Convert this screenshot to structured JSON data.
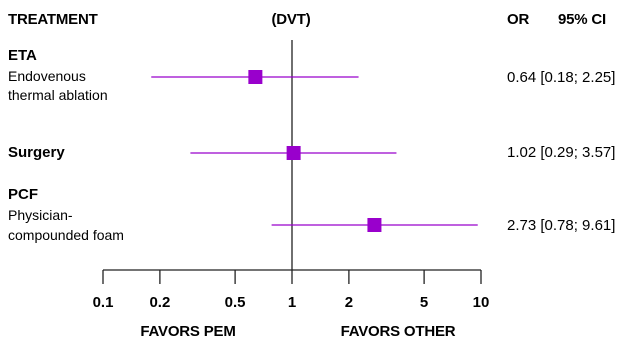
{
  "header": {
    "col1": "TREATMENT",
    "col2": "(DVT)",
    "col3": "OR",
    "col4": "95% CI"
  },
  "rows": [
    {
      "name": "ETA",
      "desc": [
        "Endovenous",
        "thermal ablation"
      ],
      "ci_text": "0.64 [0.18; 2.25]"
    },
    {
      "name": "Surgery",
      "desc": [],
      "ci_text": "1.02 [0.29; 3.57]"
    },
    {
      "name": "PCF",
      "desc": [
        "Physician-",
        "compounded foam"
      ],
      "ci_text": "2.73 [0.78; 9.61]"
    }
  ],
  "footer": {
    "left": "FAVORS PEM",
    "right": "FAVORS OTHER"
  },
  "colors": {
    "marker": "#9900cc",
    "axis": "#222222"
  },
  "chart_data": {
    "type": "forest",
    "scale": "log",
    "xlim": [
      0.1,
      10
    ],
    "reference_line": 1,
    "ticks": [
      0.1,
      0.2,
      0.5,
      1,
      2,
      5,
      10
    ],
    "tick_labels": [
      "0.1",
      "0.2",
      "0.5",
      "1",
      "2",
      "5",
      "10"
    ],
    "series": [
      {
        "category": "ETA",
        "estimate": 0.64,
        "lower": 0.18,
        "upper": 2.25
      },
      {
        "category": "Surgery",
        "estimate": 1.02,
        "lower": 0.29,
        "upper": 3.57
      },
      {
        "category": "PCF",
        "estimate": 2.73,
        "lower": 0.78,
        "upper": 9.61
      }
    ]
  }
}
